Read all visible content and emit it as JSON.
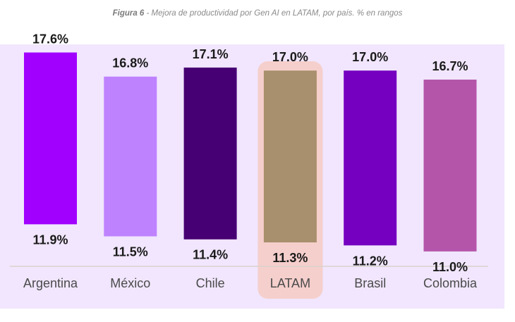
{
  "caption": {
    "figure": "Figura 6",
    "text": " - Mejora de productividad por Gen AI en LATAM, por país. % en rangos"
  },
  "colors": {
    "panel": "#f1e6fd",
    "highlight": "#f5cfcc",
    "axis": "#d9d2cc"
  },
  "chart_data": {
    "type": "bar",
    "subtype": "floating-range",
    "categories": [
      "Argentina",
      "México",
      "Chile",
      "LATAM",
      "Brasil",
      "Colombia"
    ],
    "series": [
      {
        "low": 11.9,
        "high": 17.6,
        "low_label": "11.9%",
        "high_label": "17.6%",
        "color": "#a100ff"
      },
      {
        "low": 11.5,
        "high": 16.8,
        "low_label": "11.5%",
        "high_label": "16.8%",
        "color": "#be82ff"
      },
      {
        "low": 11.4,
        "high": 17.1,
        "low_label": "11.4%",
        "high_label": "17.1%",
        "color": "#460073"
      },
      {
        "low": 11.3,
        "high": 17.0,
        "low_label": "11.3%",
        "high_label": "17.0%",
        "color": "#a88f6d"
      },
      {
        "low": 11.2,
        "high": 17.0,
        "low_label": "11.2%",
        "high_label": "17.0%",
        "color": "#7500c0"
      },
      {
        "low": 11.0,
        "high": 16.7,
        "low_label": "11.0%",
        "high_label": "16.7%",
        "color": "#b455aa"
      }
    ],
    "highlighted_category": "LATAM",
    "title": "",
    "xlabel": "",
    "ylabel": "",
    "ylim": [
      9.5,
      18.5
    ]
  }
}
